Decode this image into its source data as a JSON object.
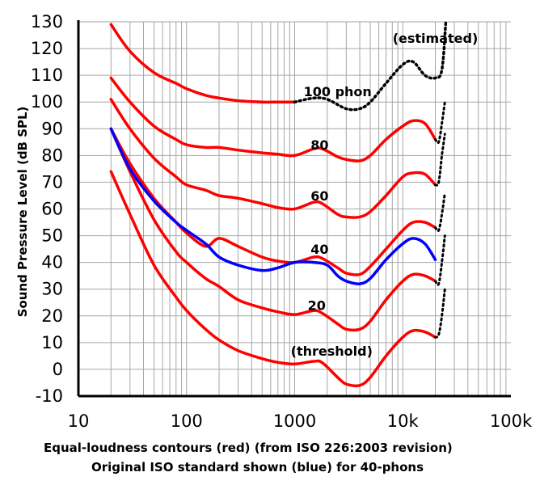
{
  "chart_data": {
    "type": "line",
    "title": "",
    "xlabel": "Equal-loudness contours (red) (from ISO 226:2003 revision)",
    "xlabel_line2": "Original ISO standard shown (blue) for 40-phons",
    "ylabel": "Sound Pressure Level (dB SPL)",
    "x_scale": "log",
    "xlim": [
      10,
      100000
    ],
    "ylim": [
      -10,
      130
    ],
    "grid": true,
    "x_ticks": [
      {
        "value": 10,
        "label": "10"
      },
      {
        "value": 100,
        "label": "100"
      },
      {
        "value": 1000,
        "label": "1000"
      },
      {
        "value": 10000,
        "label": "10k"
      },
      {
        "value": 100000,
        "label": "100k"
      }
    ],
    "y_ticks": [
      130,
      120,
      110,
      100,
      90,
      80,
      70,
      60,
      50,
      40,
      30,
      20,
      10,
      0,
      -10
    ],
    "colors": {
      "iso2003": "#ff0000",
      "original": "#0000ff",
      "estimated": "#000000"
    },
    "series": [
      {
        "label": "(threshold)",
        "style": "iso2003",
        "x": [
          20,
          30,
          50,
          80,
          100,
          150,
          200,
          300,
          500,
          700,
          1000,
          1500,
          1800,
          2500,
          3000,
          4000,
          5000,
          7000,
          10000,
          12500,
          16000,
          20000
        ],
        "y": [
          74,
          58,
          39,
          27,
          22,
          15,
          11,
          7,
          4,
          2.6,
          2,
          3,
          2.5,
          -3,
          -5.5,
          -6,
          -3,
          5,
          12,
          14.5,
          14,
          12
        ]
      },
      {
        "label": "20",
        "style": "iso2003",
        "x": [
          20,
          30,
          50,
          80,
          100,
          150,
          200,
          300,
          500,
          700,
          1000,
          1500,
          1800,
          2500,
          3000,
          4000,
          5000,
          7000,
          10000,
          12500,
          16000,
          20000
        ],
        "y": [
          90,
          74,
          56,
          44,
          40,
          34,
          31,
          26,
          23,
          21.5,
          20.5,
          22,
          21,
          17,
          15,
          15,
          18,
          26,
          33,
          35.5,
          35,
          33
        ]
      },
      {
        "label": "40",
        "style": "iso2003",
        "x": [
          20,
          30,
          50,
          80,
          100,
          150,
          200,
          300,
          500,
          700,
          1000,
          1500,
          1800,
          2500,
          3000,
          4000,
          5000,
          7000,
          10000,
          12500,
          16000,
          20000
        ],
        "y": [
          90,
          77,
          64,
          55,
          51,
          46,
          49,
          46,
          42,
          40.5,
          40,
          42,
          41.5,
          38,
          36,
          35.5,
          38.5,
          45,
          52,
          55,
          55,
          53
        ]
      },
      {
        "label": "60",
        "style": "iso2003",
        "x": [
          20,
          30,
          50,
          80,
          100,
          150,
          200,
          300,
          500,
          700,
          1000,
          1500,
          1800,
          2500,
          3000,
          4000,
          5000,
          7000,
          10000,
          12500,
          16000,
          20000
        ],
        "y": [
          101,
          90,
          79,
          72,
          69,
          67,
          65,
          64,
          62,
          60.5,
          60,
          62.5,
          62,
          58,
          57,
          57,
          59,
          65,
          72,
          73.5,
          73,
          69
        ]
      },
      {
        "label": "80",
        "style": "iso2003",
        "x": [
          20,
          30,
          50,
          80,
          100,
          150,
          200,
          300,
          500,
          700,
          1000,
          1500,
          1800,
          2500,
          3000,
          4000,
          5000,
          7000,
          10000,
          12500,
          16000,
          20000
        ],
        "y": [
          109,
          100,
          91,
          86,
          84,
          83,
          83,
          82,
          81,
          80.5,
          80,
          82.5,
          82.5,
          79.5,
          78.5,
          78,
          80,
          86,
          91,
          93,
          92,
          86
        ]
      },
      {
        "label": "100 phon",
        "style": "iso2003",
        "x": [
          20,
          30,
          50,
          80,
          100,
          150,
          200,
          300,
          500,
          700,
          1000
        ],
        "y": [
          129,
          119,
          111,
          107,
          105,
          102.5,
          101.5,
          100.5,
          100,
          100,
          100
        ]
      },
      {
        "label": "40 (original ISO)",
        "style": "original",
        "x": [
          20,
          30,
          50,
          80,
          100,
          150,
          200,
          300,
          500,
          700,
          1000,
          1500,
          2000,
          2500,
          3000,
          4000,
          5000,
          7000,
          10000,
          12500,
          16000,
          20000
        ],
        "y": [
          90,
          75,
          63,
          55,
          52,
          47,
          42,
          39,
          37,
          38,
          40,
          40,
          39,
          35,
          33,
          32,
          34,
          41,
          47,
          49,
          47,
          41
        ]
      },
      {
        "label": "(estimated)",
        "style": "estimated",
        "dashed": true,
        "x": [
          1000,
          1500,
          2000,
          3000,
          4000,
          5000,
          7000,
          10000,
          12500,
          16000,
          20000,
          23000,
          25000
        ],
        "y": [
          100,
          101.5,
          101,
          97.5,
          97.5,
          100,
          107,
          114,
          115,
          110,
          109,
          112,
          130
        ]
      }
    ],
    "annotations": [
      {
        "text": "(estimated)",
        "x": 20000,
        "y": 124
      },
      {
        "text": "100 phon",
        "x": 2500,
        "y": 104
      },
      {
        "text": "80",
        "x": 1700,
        "y": 84
      },
      {
        "text": "60",
        "x": 1700,
        "y": 65
      },
      {
        "text": "40",
        "x": 1700,
        "y": 45
      },
      {
        "text": "20",
        "x": 1600,
        "y": 24
      },
      {
        "text": "(threshold)",
        "x": 2200,
        "y": 7
      }
    ]
  }
}
